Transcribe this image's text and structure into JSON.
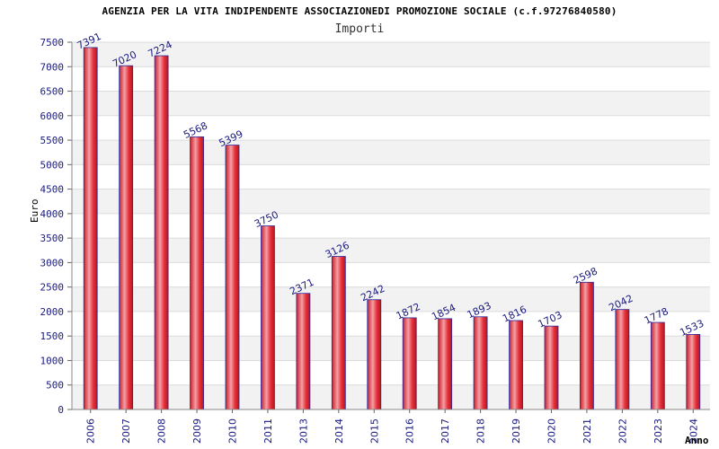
{
  "chart_data": {
    "type": "bar",
    "title": "AGENZIA PER LA VITA INDIPENDENTE ASSOCIAZIONEDI PROMOZIONE SOCIALE (c.f.97276840580)",
    "subtitle": "Importi",
    "xlabel": "Anno",
    "ylabel": "Euro",
    "categories": [
      "2006",
      "2007",
      "2008",
      "2009",
      "2010",
      "2011",
      "2013",
      "2014",
      "2015",
      "2016",
      "2017",
      "2018",
      "2019",
      "2020",
      "2021",
      "2022",
      "2023",
      "2024"
    ],
    "values": [
      7391,
      7020,
      7224,
      5568,
      5399,
      3750,
      2371,
      3126,
      2242,
      1872,
      1854,
      1893,
      1816,
      1703,
      2598,
      2042,
      1778,
      1533
    ],
    "ylim": [
      0,
      7500
    ],
    "yticks": [
      0,
      500,
      1000,
      1500,
      2000,
      2500,
      3000,
      3500,
      4000,
      4500,
      5000,
      5500,
      6000,
      6500,
      7000,
      7500
    ],
    "grid": true,
    "legend": "none",
    "colors": {
      "bar": "#e8303a",
      "bar_highlight": "#f4a0a6",
      "bar_edge": "#2a2aa0",
      "label": "#1a1a80",
      "grid_band": "#f2f2f2",
      "grid_line": "#dcdcdc"
    }
  }
}
